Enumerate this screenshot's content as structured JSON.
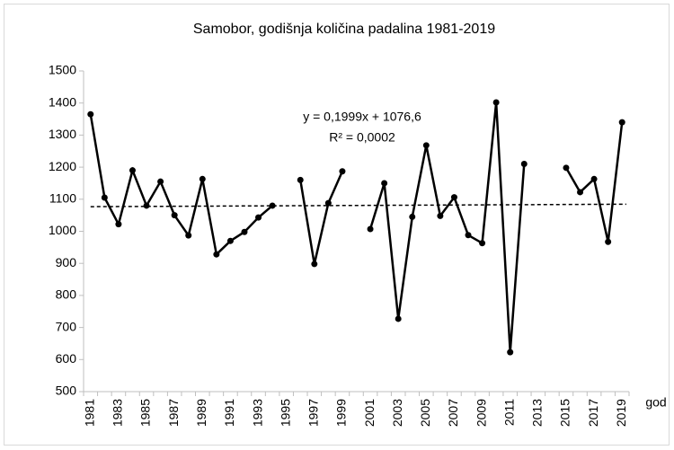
{
  "chart_data": {
    "type": "line",
    "title": "Samobor, godišnja količina padalina 1981-2019",
    "x_label": "god",
    "categories": [
      "1981",
      null,
      "1983",
      null,
      "1985",
      null,
      "1987",
      null,
      "1989",
      null,
      "1991",
      null,
      "1993",
      null,
      "1995",
      null,
      "1997",
      null,
      "1999",
      null,
      "2001",
      null,
      "2003",
      null,
      "2005",
      null,
      "2007",
      null,
      "2009",
      null,
      "2011",
      null,
      "2013",
      null,
      "2015",
      null,
      "2017",
      null,
      "2019"
    ],
    "series": [
      {
        "color": "#000000",
        "values": [
          1365,
          1105,
          1022,
          1190,
          1080,
          1155,
          1050,
          987,
          1163,
          928,
          970,
          998,
          1043,
          1080,
          null,
          1160,
          898,
          1088,
          1187,
          null,
          1007,
          1150,
          727,
          1045,
          1268,
          1048,
          1106,
          988,
          963,
          1402,
          623,
          1210,
          null,
          null,
          1198,
          1122,
          1163,
          967,
          1340
        ]
      }
    ],
    "trendline": {
      "slope": 0.1999,
      "intercept": 1076.6,
      "label": "y = 0,1999x + 1076,6",
      "r2_label": "R² = 0,0002"
    },
    "ylim": [
      500,
      1500
    ],
    "yticks": [
      500,
      600,
      700,
      800,
      900,
      1000,
      1100,
      1200,
      1300,
      1400,
      1500
    ],
    "grid": false
  }
}
